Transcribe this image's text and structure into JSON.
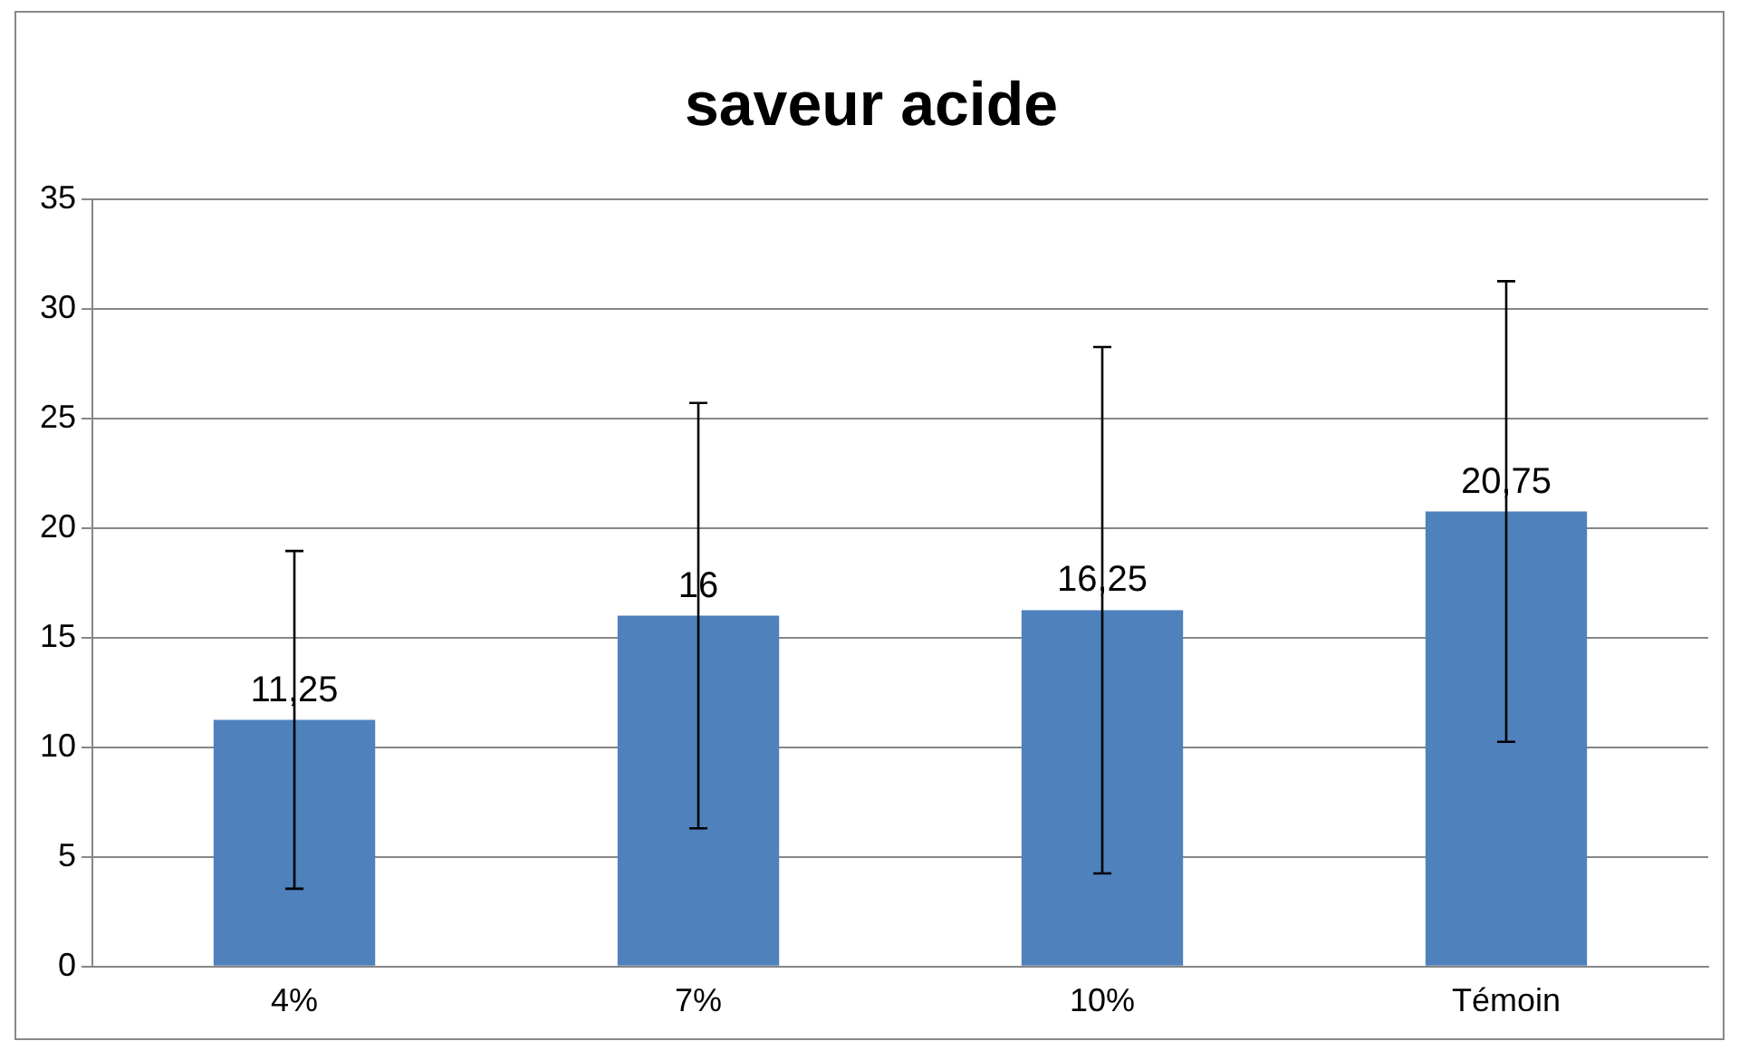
{
  "chart_data": {
    "type": "bar",
    "title": "saveur acide",
    "categories": [
      "4%",
      "7%",
      "10%",
      "Témoin"
    ],
    "values": [
      11.25,
      16,
      16.25,
      20.75
    ],
    "value_labels": [
      "11,25",
      "16",
      "16,25",
      "20,75"
    ],
    "errors": [
      7.7,
      9.7,
      12,
      10.5
    ],
    "color": "#4f81bd",
    "ylim": [
      0,
      35
    ],
    "yticks": [
      0,
      5,
      10,
      15,
      20,
      25,
      30,
      35
    ],
    "grid": "y",
    "legend": false
  }
}
